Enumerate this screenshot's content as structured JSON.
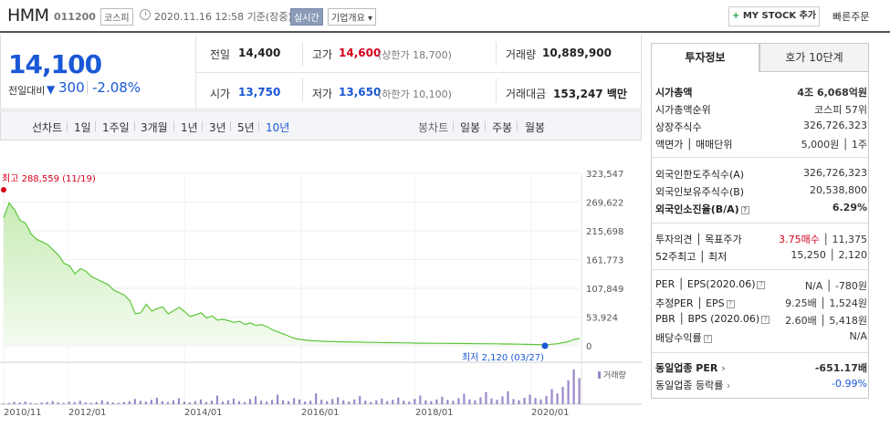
{
  "header": {
    "stock_name": "HMM",
    "stock_code": "011200",
    "market_tag": "코스피",
    "date_text": "2020.11.16 12:58  기준(장중)",
    "realtime_label": "실시간",
    "overview_label": "기업개요 ▾",
    "mystock_plus": "+",
    "mystock_label": " MY STOCK 추가",
    "quick_order_label": "빠른주문"
  },
  "price": {
    "current": "14,100",
    "diff_label": "전일대비",
    "diff_arrow": "▼",
    "diff_value": "300",
    "diff_pct": "-2.08%",
    "prev_label": "전일",
    "prev_value": "14,400",
    "high_label": "고가",
    "high_value": "14,600",
    "upper_limit": "(상한가 18,700)",
    "volume_label": "거래량",
    "volume_value": "10,889,900",
    "open_label": "시가",
    "open_value": "13,750",
    "low_label": "저가",
    "low_value": "13,650",
    "lower_limit": "(하한가 10,100)",
    "amount_label": "거래대금",
    "amount_value": "153,247 백만"
  },
  "period_bar": {
    "line_chart_label": "선차트",
    "line_periods": [
      "1일",
      "1주일",
      "3개월",
      "1년",
      "3년",
      "5년",
      "10년"
    ],
    "active_period": "10년",
    "candle_chart_label": "봉차트",
    "candle_periods": [
      "일봉",
      "주봉",
      "월봉"
    ]
  },
  "chart_data": {
    "type": "area",
    "y_ticks": [
      "323,547",
      "269,622",
      "215,698",
      "161,773",
      "107,849",
      "53,924",
      "0"
    ],
    "ylim": [
      0,
      323547
    ],
    "x_ticks": [
      "2010/11",
      "2012/01",
      "2014/01",
      "2016/01",
      "2018/01",
      "2020/01"
    ],
    "max_label": "최고 288,559 (11/19)",
    "min_label": "최저 2,120 (03/27)",
    "volume_label": "거래량",
    "colors": {
      "line": "#5cc63a",
      "fill_top": "#c8ecb5",
      "fill_bottom": "#f4fbf0",
      "volume": "#9b88c9",
      "max": "#d6001c",
      "min": "#1a58d6"
    },
    "series": [
      {
        "values": [
          240000,
          268000,
          255000,
          235000,
          230000,
          210000,
          200000,
          195000,
          190000,
          180000,
          170000,
          155000,
          150000,
          135000,
          145000,
          140000,
          130000,
          125000,
          120000,
          115000,
          105000,
          100000,
          95000,
          85000,
          60000,
          62000,
          78000,
          65000,
          70000,
          73000,
          60000,
          66000,
          72000,
          64000,
          55000,
          58000,
          62000,
          52000,
          56000,
          48000,
          50000,
          47000,
          44000,
          46000,
          40000,
          43000,
          38000,
          40000,
          36000,
          30000,
          26000,
          22000,
          18000,
          14000,
          12000,
          11000,
          9500,
          9000,
          8500,
          8000,
          8000,
          7500,
          7500,
          7000,
          7000,
          7000,
          6500,
          6500,
          6300,
          6000,
          6000,
          5800,
          5600,
          5500,
          5400,
          5200,
          5000,
          5000,
          4800,
          4800,
          4600,
          4600,
          4500,
          4400,
          4300,
          4200,
          4000,
          3900,
          3900,
          3800,
          3700,
          3500,
          3400,
          3200,
          3000,
          2800,
          2600,
          2400,
          2200,
          2120,
          3000,
          4000,
          6000,
          8000,
          12000,
          14100
        ]
      }
    ],
    "volume": [
      2,
      3,
      5,
      4,
      6,
      3,
      2,
      4,
      5,
      7,
      4,
      3,
      6,
      5,
      8,
      4,
      3,
      5,
      9,
      6,
      4,
      3,
      5,
      7,
      12,
      8,
      6,
      10,
      15,
      7,
      5,
      9,
      14,
      6,
      4,
      7,
      11,
      5,
      8,
      20,
      6,
      9,
      13,
      7,
      5,
      12,
      18,
      8,
      6,
      10,
      22,
      9,
      7,
      14,
      11,
      6,
      8,
      25,
      10,
      7,
      12,
      16,
      9,
      6,
      11,
      19,
      8,
      5,
      9,
      13,
      7,
      10,
      15,
      8,
      6,
      12,
      20,
      9,
      7,
      11,
      17,
      10,
      8,
      14,
      24,
      11,
      9,
      16,
      28,
      13,
      10,
      18,
      30,
      12,
      9,
      15,
      22,
      14,
      11,
      19,
      35,
      25,
      40,
      55,
      80,
      60
    ]
  },
  "right_panel": {
    "tab_invest": "투자정보",
    "tab_hoga": "호가 10단계",
    "rows1": [
      {
        "l": "시가총액",
        "r": "4조 6,068억원"
      },
      {
        "l": "시가총액순위",
        "r": "코스피 57위"
      },
      {
        "l": "상장주식수",
        "r": "326,726,323"
      },
      {
        "l": "액면가 │ 매매단위",
        "r": "5,000원 │ 1주"
      }
    ],
    "rows2": [
      {
        "l": "외국인한도주식수(A)",
        "r": "326,726,323"
      },
      {
        "l": "외국인보유주식수(B)",
        "r": "20,538,800"
      },
      {
        "l": "외국인소진율(B/A)",
        "r": "6.29%"
      }
    ],
    "rows3": [
      {
        "l": "투자의견 │ 목표주가",
        "r1": "3.75매수",
        "r2": " │ 11,375"
      },
      {
        "l": "52주최고 │ 최저",
        "r": "15,250 │ 2,120"
      }
    ],
    "rows4": [
      {
        "l": "PER │ EPS(2020.06)",
        "r": "N/A │ -780원"
      },
      {
        "l": "추정PER │ EPS",
        "r": "9.25배 │ 1,524원"
      },
      {
        "l": "PBR │ BPS (2020.06)",
        "r": "2.60배 │ 5,418원"
      },
      {
        "l": "배당수익률",
        "r": "N/A"
      }
    ],
    "rows5": [
      {
        "l": "동일업종 PER",
        "r": "-651.17배"
      },
      {
        "l": "동일업종 등락률",
        "r": "-0.99%"
      }
    ]
  }
}
